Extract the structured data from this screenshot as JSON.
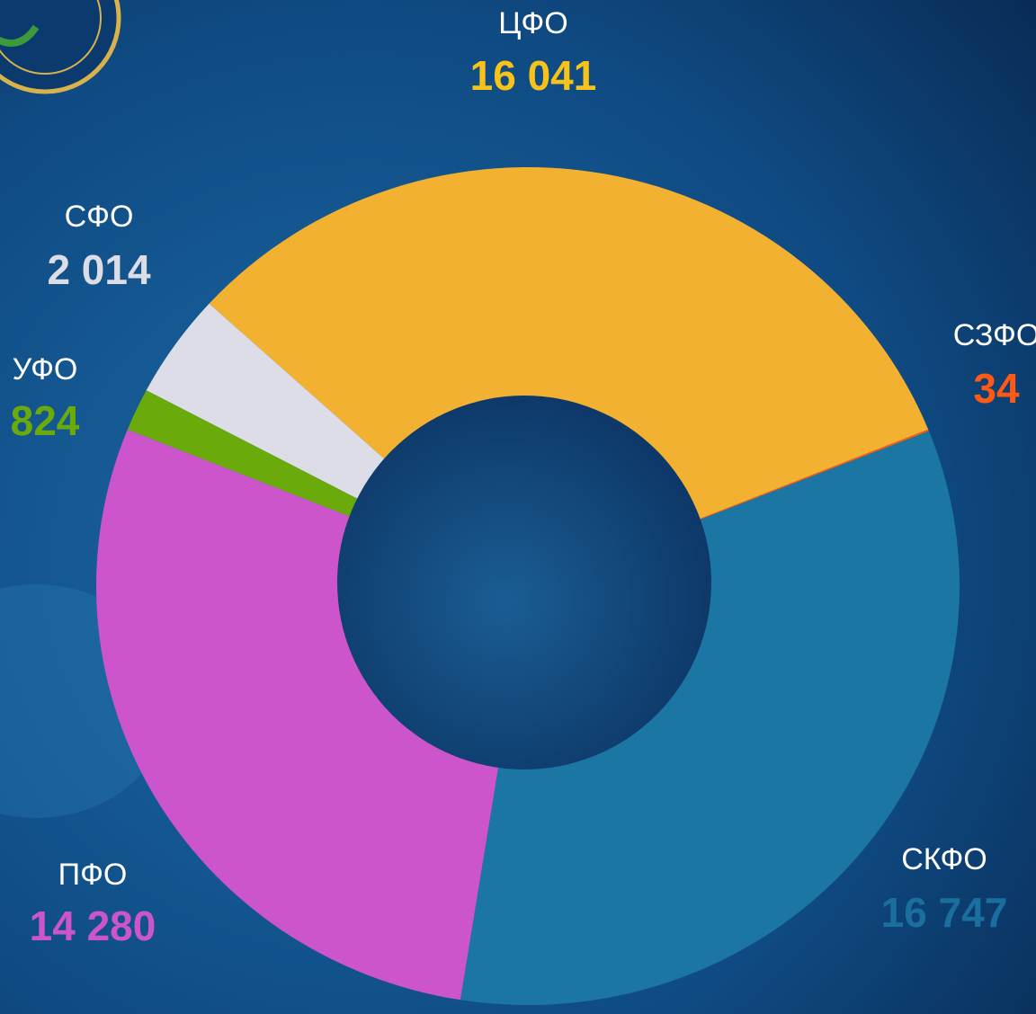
{
  "chart_data": {
    "type": "donut",
    "categories": [
      "ЦФО",
      "СЗФО",
      "СКФО",
      "ПФО",
      "УФО",
      "СФО"
    ],
    "values": [
      16041,
      34,
      16747,
      14280,
      824,
      2014
    ],
    "value_labels": [
      "16 041",
      "34",
      "16 747",
      "14 280",
      "824",
      "2 014"
    ],
    "colors": [
      "#f2b130",
      "#ff5a14",
      "#1b76a3",
      "#cc55cc",
      "#6aaa0a",
      "#dcdde6"
    ],
    "label_colors": [
      "#f7c21a",
      "#ff5a14",
      "#1b6f9f",
      "#cc55cc",
      "#6aaa0a",
      "#dcdde6"
    ]
  }
}
